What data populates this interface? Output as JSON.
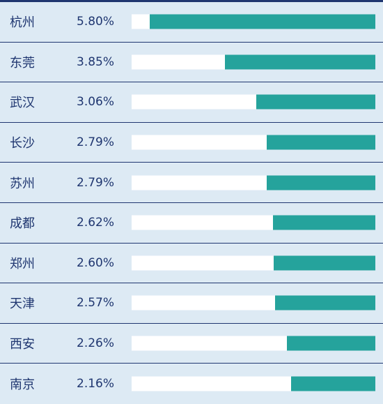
{
  "chart_data": {
    "type": "bar",
    "orientation": "horizontal",
    "grid": false,
    "categories": [
      "杭州",
      "东莞",
      "武汉",
      "长沙",
      "苏州",
      "成都",
      "郑州",
      "天津",
      "西安",
      "南京"
    ],
    "value_labels": [
      "5.80%",
      "3.85%",
      "3.06%",
      "2.79%",
      "2.79%",
      "2.62%",
      "2.60%",
      "2.57%",
      "2.26%",
      "2.16%"
    ],
    "values": [
      5.8,
      3.85,
      3.06,
      2.79,
      2.79,
      2.62,
      2.6,
      2.57,
      2.26,
      2.16
    ],
    "bar_fill_fraction": [
      0.925,
      0.617,
      0.489,
      0.446,
      0.446,
      0.42,
      0.417,
      0.411,
      0.363,
      0.346
    ]
  },
  "colors": {
    "background": "#ddeaf4",
    "text": "#1f3670",
    "bar": "#25a39c",
    "track": "#ffffff",
    "divider": "#1f3670"
  }
}
